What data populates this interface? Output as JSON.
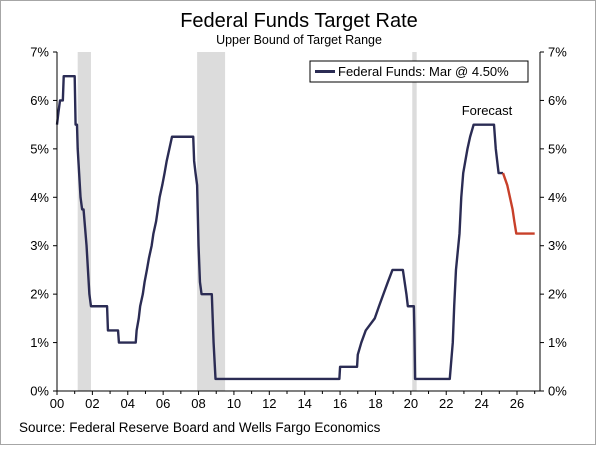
{
  "chart_data": {
    "type": "line",
    "title": "Federal Funds Target Rate",
    "subtitle": "Upper Bound of Target Range",
    "source": "Source: Federal Reserve Board and Wells Fargo Economics",
    "legend": {
      "label": "Federal Funds: Mar @ 4.50%",
      "placement": "top-right"
    },
    "annotation": "Forecast",
    "x_tick_labels": [
      "00",
      "02",
      "04",
      "06",
      "08",
      "10",
      "12",
      "14",
      "16",
      "18",
      "20",
      "22",
      "24",
      "26"
    ],
    "y_tick_labels": [
      "0%",
      "1%",
      "2%",
      "3%",
      "4%",
      "5%",
      "6%",
      "7%"
    ],
    "xlim": [
      2000,
      2027.3
    ],
    "ylim": [
      0,
      7
    ],
    "grid": false,
    "colors": {
      "actual": "#2b2c54",
      "forecast": "#c8402a",
      "recession": "#dcdcdc",
      "axis": "#000000"
    },
    "recessions": [
      [
        2001.17,
        2001.92
      ],
      [
        2007.92,
        2009.5
      ],
      [
        2020.08,
        2020.33
      ]
    ],
    "series": [
      {
        "name": "Federal Funds",
        "points": [
          [
            2000.0,
            5.5
          ],
          [
            2000.08,
            5.75
          ],
          [
            2000.17,
            6.0
          ],
          [
            2000.33,
            6.0
          ],
          [
            2000.38,
            6.5
          ],
          [
            2001.0,
            6.5
          ],
          [
            2001.05,
            5.5
          ],
          [
            2001.13,
            5.5
          ],
          [
            2001.17,
            5.0
          ],
          [
            2001.25,
            4.5
          ],
          [
            2001.33,
            4.0
          ],
          [
            2001.42,
            3.75
          ],
          [
            2001.5,
            3.75
          ],
          [
            2001.67,
            3.0
          ],
          [
            2001.75,
            2.5
          ],
          [
            2001.83,
            2.0
          ],
          [
            2001.92,
            1.75
          ],
          [
            2002.83,
            1.75
          ],
          [
            2002.88,
            1.25
          ],
          [
            2003.45,
            1.25
          ],
          [
            2003.5,
            1.0
          ],
          [
            2004.45,
            1.0
          ],
          [
            2004.5,
            1.25
          ],
          [
            2004.62,
            1.5
          ],
          [
            2004.7,
            1.75
          ],
          [
            2004.85,
            2.0
          ],
          [
            2004.95,
            2.25
          ],
          [
            2005.08,
            2.5
          ],
          [
            2005.2,
            2.75
          ],
          [
            2005.35,
            3.0
          ],
          [
            2005.45,
            3.25
          ],
          [
            2005.6,
            3.5
          ],
          [
            2005.7,
            3.75
          ],
          [
            2005.8,
            4.0
          ],
          [
            2005.95,
            4.25
          ],
          [
            2006.08,
            4.5
          ],
          [
            2006.2,
            4.75
          ],
          [
            2006.35,
            5.0
          ],
          [
            2006.5,
            5.25
          ],
          [
            2007.7,
            5.25
          ],
          [
            2007.75,
            4.75
          ],
          [
            2007.83,
            4.5
          ],
          [
            2007.92,
            4.25
          ],
          [
            2008.0,
            3.0
          ],
          [
            2008.08,
            2.25
          ],
          [
            2008.17,
            2.0
          ],
          [
            2008.75,
            2.0
          ],
          [
            2008.8,
            1.5
          ],
          [
            2008.85,
            1.0
          ],
          [
            2008.96,
            0.25
          ],
          [
            2015.96,
            0.25
          ],
          [
            2016.0,
            0.5
          ],
          [
            2016.96,
            0.5
          ],
          [
            2017.0,
            0.75
          ],
          [
            2017.2,
            1.0
          ],
          [
            2017.45,
            1.25
          ],
          [
            2017.96,
            1.5
          ],
          [
            2018.2,
            1.75
          ],
          [
            2018.45,
            2.0
          ],
          [
            2018.7,
            2.25
          ],
          [
            2018.96,
            2.5
          ],
          [
            2019.55,
            2.5
          ],
          [
            2019.65,
            2.25
          ],
          [
            2019.75,
            2.0
          ],
          [
            2019.83,
            1.75
          ],
          [
            2020.17,
            1.75
          ],
          [
            2020.2,
            1.25
          ],
          [
            2020.24,
            0.25
          ],
          [
            2022.2,
            0.25
          ],
          [
            2022.37,
            1.0
          ],
          [
            2022.45,
            1.75
          ],
          [
            2022.55,
            2.5
          ],
          [
            2022.75,
            3.25
          ],
          [
            2022.85,
            4.0
          ],
          [
            2022.96,
            4.5
          ],
          [
            2023.08,
            4.75
          ],
          [
            2023.2,
            5.0
          ],
          [
            2023.35,
            5.25
          ],
          [
            2023.55,
            5.5
          ],
          [
            2024.7,
            5.5
          ],
          [
            2024.8,
            5.0
          ],
          [
            2024.88,
            4.75
          ],
          [
            2024.96,
            4.5
          ],
          [
            2025.21,
            4.5
          ]
        ]
      },
      {
        "name": "Forecast",
        "points": [
          [
            2025.21,
            4.5
          ],
          [
            2025.45,
            4.25
          ],
          [
            2025.6,
            4.0
          ],
          [
            2025.75,
            3.75
          ],
          [
            2025.85,
            3.5
          ],
          [
            2025.96,
            3.25
          ],
          [
            2027.0,
            3.25
          ]
        ]
      }
    ]
  }
}
